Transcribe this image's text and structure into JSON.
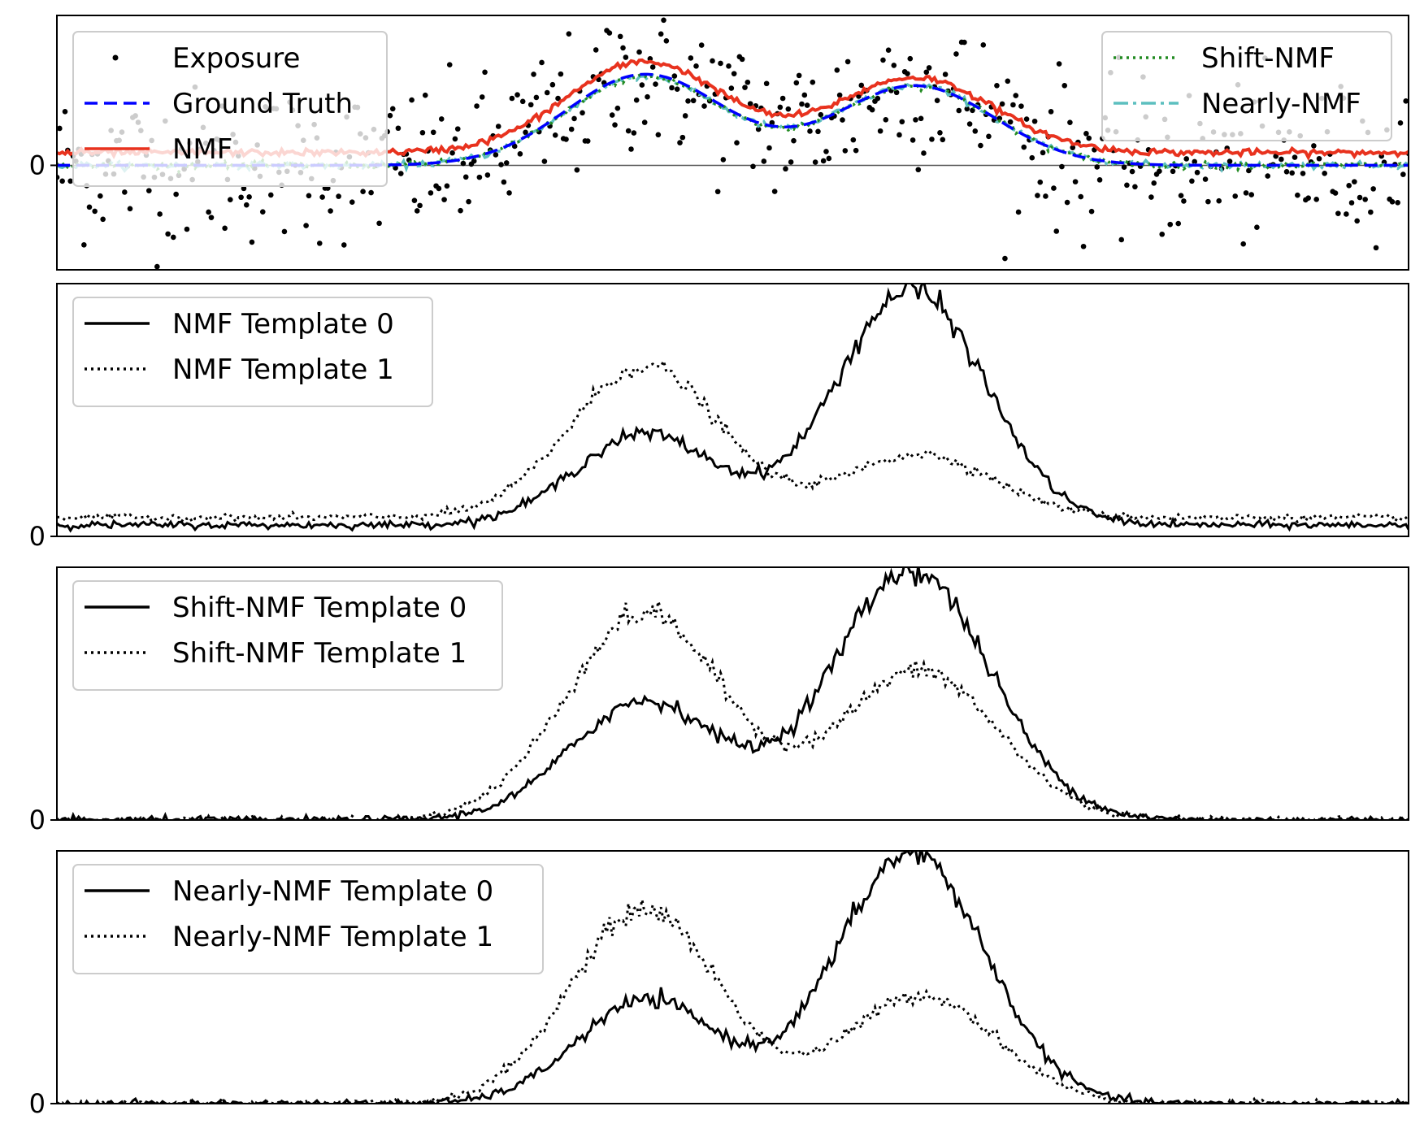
{
  "chart_data": [
    {
      "type": "scatter",
      "ylim": [
        -2.3,
        3.3
      ],
      "ytick_labels": [
        "0"
      ],
      "x_samples": 500,
      "legend_left": {
        "entries": [
          "Exposure",
          "Ground Truth",
          "NMF"
        ],
        "placement": "upper left"
      },
      "legend_right": {
        "entries": [
          "Shift-NMF",
          "Nearly-NMF"
        ],
        "placement": "upper right"
      },
      "series": [
        {
          "name": "Exposure",
          "style": "points",
          "color": "#000000",
          "noise_sd": 0.85
        },
        {
          "name": "Ground Truth",
          "style": "dashed",
          "color": "#0000ff",
          "components": [
            {
              "center": 0.435,
              "width": 0.058,
              "amp": 2.0
            },
            {
              "center": 0.635,
              "width": 0.058,
              "amp": 1.75
            }
          ],
          "offset": 0
        },
        {
          "name": "NMF",
          "style": "solid",
          "color": "#e8321e",
          "components": [
            {
              "center": 0.435,
              "width": 0.058,
              "amp": 2.0
            },
            {
              "center": 0.635,
              "width": 0.058,
              "amp": 1.65
            }
          ],
          "offset": 0.28
        },
        {
          "name": "Shift-NMF",
          "style": "dotted",
          "color": "#228b22",
          "components": [
            {
              "center": 0.435,
              "width": 0.058,
              "amp": 1.95
            },
            {
              "center": 0.635,
              "width": 0.058,
              "amp": 1.75
            }
          ],
          "offset": 0
        },
        {
          "name": "Nearly-NMF",
          "style": "dashdot",
          "color": "#5cbfbf",
          "components": [
            {
              "center": 0.435,
              "width": 0.058,
              "amp": 1.95
            },
            {
              "center": 0.635,
              "width": 0.058,
              "amp": 1.75
            }
          ],
          "offset": 0
        }
      ]
    },
    {
      "type": "line",
      "ylim": [
        0,
        1.0
      ],
      "ytick_labels": [
        "0"
      ],
      "legend": {
        "entries": [
          "NMF Template 0",
          "NMF Template 1"
        ],
        "placement": "upper left"
      },
      "series": [
        {
          "name": "NMF Template 0",
          "style": "solid",
          "color": "#000000",
          "components": [
            {
              "center": 0.435,
              "width": 0.052,
              "amp": 0.36
            },
            {
              "center": 0.632,
              "width": 0.055,
              "amp": 0.93
            }
          ],
          "offset": 0.045
        },
        {
          "name": "NMF Template 1",
          "style": "dotted",
          "color": "#000000",
          "components": [
            {
              "center": 0.435,
              "width": 0.055,
              "amp": 0.6
            },
            {
              "center": 0.638,
              "width": 0.055,
              "amp": 0.25
            }
          ],
          "offset": 0.075
        }
      ]
    },
    {
      "type": "line",
      "ylim": [
        0,
        1.0
      ],
      "ytick_labels": [
        "0"
      ],
      "legend": {
        "entries": [
          "Shift-NMF Template 0",
          "Shift-NMF Template 1"
        ],
        "placement": "upper left"
      },
      "series": [
        {
          "name": "Shift-NMF Template 0",
          "style": "solid",
          "color": "#000000",
          "components": [
            {
              "center": 0.435,
              "width": 0.055,
              "amp": 0.47
            },
            {
              "center": 0.632,
              "width": 0.058,
              "amp": 0.99
            }
          ],
          "offset": 0.0
        },
        {
          "name": "Shift-NMF Template 1",
          "style": "dotted",
          "color": "#000000",
          "components": [
            {
              "center": 0.435,
              "width": 0.058,
              "amp": 0.82
            },
            {
              "center": 0.638,
              "width": 0.058,
              "amp": 0.59
            }
          ],
          "offset": 0.0
        }
      ]
    },
    {
      "type": "line",
      "ylim": [
        0,
        1.0
      ],
      "ytick_labels": [
        "0"
      ],
      "legend": {
        "entries": [
          "Nearly-NMF Template 0",
          "Nearly-NMF Template 1"
        ],
        "placement": "upper left"
      },
      "series": [
        {
          "name": "Nearly-NMF Template 0",
          "style": "solid",
          "color": "#000000",
          "components": [
            {
              "center": 0.437,
              "width": 0.052,
              "amp": 0.41
            },
            {
              "center": 0.632,
              "width": 0.055,
              "amp": 0.99
            }
          ],
          "offset": 0.0
        },
        {
          "name": "Nearly-NMF Template 1",
          "style": "dotted",
          "color": "#000000",
          "components": [
            {
              "center": 0.435,
              "width": 0.055,
              "amp": 0.77
            },
            {
              "center": 0.64,
              "width": 0.055,
              "amp": 0.43
            }
          ],
          "offset": 0.0
        }
      ]
    }
  ]
}
